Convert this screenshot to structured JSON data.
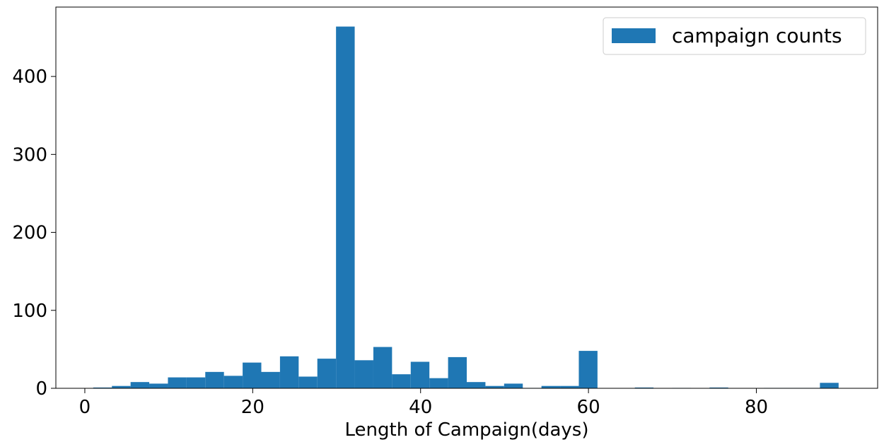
{
  "chart_data": {
    "type": "bar",
    "title": "",
    "xlabel": "Length of Campaign(days)",
    "ylabel": "",
    "xlim": [
      -3.45,
      94.45
    ],
    "ylim": [
      0,
      489
    ],
    "xticks": [
      0,
      20,
      40,
      60,
      80
    ],
    "yticks": [
      0,
      100,
      200,
      300,
      400
    ],
    "legend": {
      "placement": "top-right",
      "label": "campaign counts"
    },
    "bar_color": "#1f77b4",
    "bin_width": 2.225,
    "grid": false,
    "bins": [
      {
        "x0": 1.0,
        "value": 1
      },
      {
        "x0": 3.225,
        "value": 3
      },
      {
        "x0": 5.45,
        "value": 8
      },
      {
        "x0": 7.675,
        "value": 6
      },
      {
        "x0": 9.9,
        "value": 14
      },
      {
        "x0": 12.125,
        "value": 14
      },
      {
        "x0": 14.35,
        "value": 21
      },
      {
        "x0": 16.575,
        "value": 16
      },
      {
        "x0": 18.8,
        "value": 33
      },
      {
        "x0": 21.025,
        "value": 21
      },
      {
        "x0": 23.25,
        "value": 41
      },
      {
        "x0": 25.475,
        "value": 15
      },
      {
        "x0": 27.7,
        "value": 38
      },
      {
        "x0": 29.925,
        "value": 464
      },
      {
        "x0": 32.15,
        "value": 36
      },
      {
        "x0": 34.375,
        "value": 53
      },
      {
        "x0": 36.6,
        "value": 18
      },
      {
        "x0": 38.825,
        "value": 34
      },
      {
        "x0": 41.05,
        "value": 13
      },
      {
        "x0": 43.275,
        "value": 40
      },
      {
        "x0": 45.5,
        "value": 8
      },
      {
        "x0": 47.725,
        "value": 3
      },
      {
        "x0": 49.95,
        "value": 6
      },
      {
        "x0": 52.175,
        "value": 0.5
      },
      {
        "x0": 54.4,
        "value": 3
      },
      {
        "x0": 56.625,
        "value": 3
      },
      {
        "x0": 58.85,
        "value": 48
      },
      {
        "x0": 65.525,
        "value": 1
      },
      {
        "x0": 69.975,
        "value": 0.5
      },
      {
        "x0": 74.425,
        "value": 1
      },
      {
        "x0": 80.9,
        "value": 0.5
      },
      {
        "x0": 83.125,
        "value": 0.5
      },
      {
        "x0": 85.35,
        "value": 0.5
      },
      {
        "x0": 87.575,
        "value": 7
      }
    ]
  }
}
